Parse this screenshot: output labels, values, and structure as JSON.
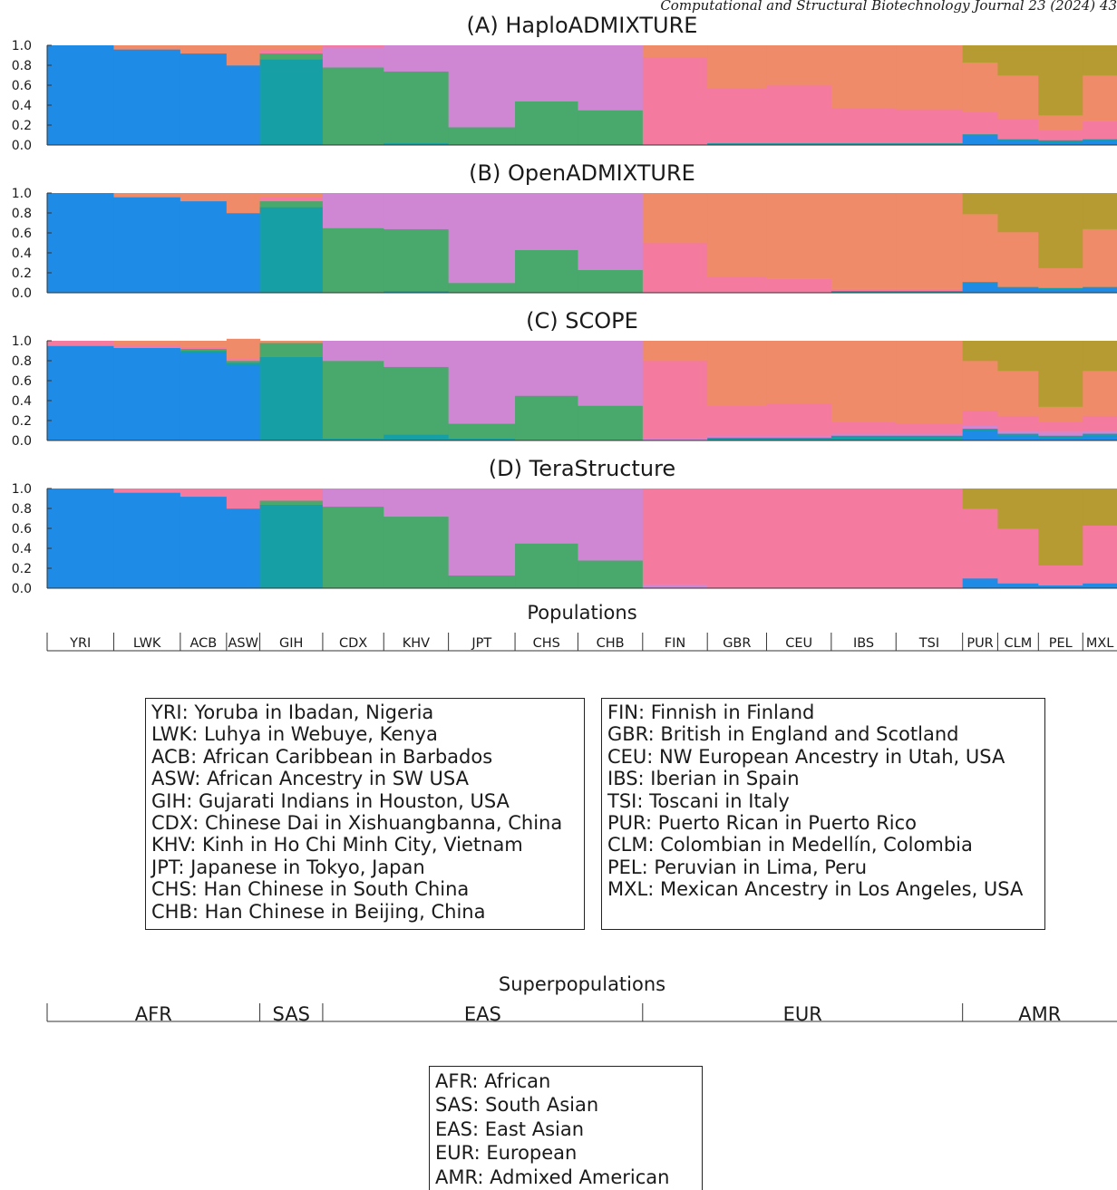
{
  "journal_header": "Computational and Structural Biotechnology Journal 23 (2024) 43",
  "components": {
    "blue": "#1e8be6",
    "teal": "#16a0a6",
    "green": "#49a86b",
    "purple": "#cf86d3",
    "pink": "#f47aa0",
    "orange": "#ef8b68",
    "olive": "#b59b32"
  },
  "y_tick_labels": [
    "1.0",
    "0.8",
    "0.6",
    "0.4",
    "0.2",
    "0.0"
  ],
  "chart_data": [
    {
      "type": "bar",
      "title": "(A) HaploADMIXTURE",
      "ylim": [
        0,
        1
      ],
      "categories": [
        "YRI",
        "LWK",
        "ACB",
        "ASW",
        "GIH",
        "CDX",
        "KHV",
        "JPT",
        "CHS",
        "CHB",
        "FIN",
        "GBR",
        "CEU",
        "IBS",
        "TSI",
        "PUR",
        "CLM",
        "PEL",
        "MXL"
      ],
      "series": [
        {
          "color": "blue",
          "values": [
            1.0,
            0.96,
            0.92,
            0.8,
            0.0,
            0.0,
            0.0,
            0.0,
            0.0,
            0.0,
            0.0,
            0.0,
            0.0,
            0.0,
            0.0,
            0.1,
            0.05,
            0.03,
            0.05
          ]
        },
        {
          "color": "teal",
          "values": [
            0.0,
            0.0,
            0.0,
            0.0,
            0.86,
            0.0,
            0.02,
            0.0,
            0.0,
            0.0,
            0.0,
            0.02,
            0.02,
            0.02,
            0.02,
            0.01,
            0.01,
            0.02,
            0.01
          ]
        },
        {
          "color": "green",
          "values": [
            0.0,
            0.0,
            0.0,
            0.0,
            0.06,
            0.78,
            0.72,
            0.18,
            0.44,
            0.35,
            0.0,
            0.0,
            0.0,
            0.0,
            0.0,
            0.0,
            0.0,
            0.0,
            0.0
          ]
        },
        {
          "color": "purple",
          "values": [
            0.0,
            0.0,
            0.0,
            0.0,
            0.0,
            0.2,
            0.26,
            0.82,
            0.56,
            0.65,
            0.0,
            0.0,
            0.0,
            0.0,
            0.0,
            0.0,
            0.0,
            0.0,
            0.0
          ]
        },
        {
          "color": "pink",
          "values": [
            0.0,
            0.0,
            0.0,
            0.0,
            0.04,
            0.02,
            0.0,
            0.0,
            0.0,
            0.0,
            0.88,
            0.55,
            0.58,
            0.35,
            0.34,
            0.22,
            0.2,
            0.1,
            0.18
          ]
        },
        {
          "color": "orange",
          "values": [
            0.0,
            0.04,
            0.08,
            0.2,
            0.04,
            0.0,
            0.0,
            0.0,
            0.0,
            0.0,
            0.12,
            0.43,
            0.4,
            0.63,
            0.64,
            0.5,
            0.44,
            0.15,
            0.46
          ]
        },
        {
          "color": "olive",
          "values": [
            0.0,
            0.0,
            0.0,
            0.0,
            0.0,
            0.0,
            0.0,
            0.0,
            0.0,
            0.0,
            0.0,
            0.0,
            0.0,
            0.0,
            0.0,
            0.17,
            0.3,
            0.7,
            0.3
          ]
        }
      ]
    },
    {
      "type": "bar",
      "title": "(B) OpenADMIXTURE",
      "ylim": [
        0,
        1
      ],
      "categories": [
        "YRI",
        "LWK",
        "ACB",
        "ASW",
        "GIH",
        "CDX",
        "KHV",
        "JPT",
        "CHS",
        "CHB",
        "FIN",
        "GBR",
        "CEU",
        "IBS",
        "TSI",
        "PUR",
        "CLM",
        "PEL",
        "MXL"
      ],
      "series": [
        {
          "color": "blue",
          "values": [
            1.0,
            0.96,
            0.92,
            0.8,
            0.0,
            0.0,
            0.0,
            0.0,
            0.0,
            0.0,
            0.0,
            0.0,
            0.0,
            0.0,
            0.0,
            0.1,
            0.05,
            0.03,
            0.05
          ]
        },
        {
          "color": "teal",
          "values": [
            0.0,
            0.0,
            0.0,
            0.0,
            0.86,
            0.0,
            0.02,
            0.0,
            0.0,
            0.0,
            0.0,
            0.0,
            0.0,
            0.02,
            0.02,
            0.01,
            0.01,
            0.02,
            0.01
          ]
        },
        {
          "color": "green",
          "values": [
            0.0,
            0.0,
            0.0,
            0.0,
            0.06,
            0.65,
            0.62,
            0.1,
            0.43,
            0.23,
            0.0,
            0.0,
            0.0,
            0.0,
            0.0,
            0.0,
            0.0,
            0.0,
            0.0
          ]
        },
        {
          "color": "purple",
          "values": [
            0.0,
            0.0,
            0.0,
            0.0,
            0.0,
            0.35,
            0.36,
            0.9,
            0.57,
            0.77,
            0.0,
            0.0,
            0.0,
            0.0,
            0.0,
            0.0,
            0.0,
            0.0,
            0.0
          ]
        },
        {
          "color": "pink",
          "values": [
            0.0,
            0.0,
            0.0,
            0.0,
            0.04,
            0.0,
            0.0,
            0.0,
            0.0,
            0.0,
            0.5,
            0.16,
            0.14,
            0.02,
            0.02,
            0.0,
            0.0,
            0.0,
            0.0
          ]
        },
        {
          "color": "orange",
          "values": [
            0.0,
            0.04,
            0.08,
            0.2,
            0.04,
            0.0,
            0.0,
            0.0,
            0.0,
            0.0,
            0.5,
            0.84,
            0.86,
            0.96,
            0.96,
            0.68,
            0.55,
            0.2,
            0.58
          ]
        },
        {
          "color": "olive",
          "values": [
            0.0,
            0.0,
            0.0,
            0.0,
            0.0,
            0.0,
            0.0,
            0.0,
            0.0,
            0.0,
            0.0,
            0.0,
            0.0,
            0.0,
            0.0,
            0.21,
            0.39,
            0.75,
            0.36
          ]
        }
      ]
    },
    {
      "type": "bar",
      "title": "(C) SCOPE",
      "ylim": [
        0,
        1
      ],
      "categories": [
        "YRI",
        "LWK",
        "ACB",
        "ASW",
        "GIH",
        "CDX",
        "KHV",
        "JPT",
        "CHS",
        "CHB",
        "FIN",
        "GBR",
        "CEU",
        "IBS",
        "TSI",
        "PUR",
        "CLM",
        "PEL",
        "MXL"
      ],
      "series": [
        {
          "color": "blue",
          "values": [
            0.95,
            0.93,
            0.88,
            0.76,
            0.0,
            0.0,
            0.0,
            0.0,
            0.0,
            0.0,
            0.0,
            0.0,
            0.0,
            0.0,
            0.0,
            0.1,
            0.05,
            0.03,
            0.05
          ]
        },
        {
          "color": "teal",
          "values": [
            0.0,
            0.0,
            0.02,
            0.02,
            0.84,
            0.02,
            0.06,
            0.02,
            0.0,
            0.0,
            0.0,
            0.03,
            0.03,
            0.05,
            0.05,
            0.02,
            0.02,
            0.02,
            0.02
          ]
        },
        {
          "color": "green",
          "values": [
            0.0,
            0.0,
            0.02,
            0.02,
            0.14,
            0.78,
            0.68,
            0.15,
            0.45,
            0.35,
            0.0,
            0.0,
            0.0,
            0.0,
            0.0,
            0.0,
            0.0,
            0.0,
            0.0
          ]
        },
        {
          "color": "purple",
          "values": [
            0.0,
            0.0,
            0.0,
            0.0,
            0.0,
            0.2,
            0.26,
            0.83,
            0.55,
            0.65,
            0.02,
            0.02,
            0.02,
            0.02,
            0.02,
            0.03,
            0.03,
            0.04,
            0.03
          ]
        },
        {
          "color": "pink",
          "values": [
            0.05,
            0.03,
            0.02,
            0.02,
            0.0,
            0.0,
            0.0,
            0.0,
            0.0,
            0.0,
            0.78,
            0.3,
            0.32,
            0.12,
            0.1,
            0.15,
            0.15,
            0.1,
            0.15
          ]
        },
        {
          "color": "orange",
          "values": [
            0.0,
            0.04,
            0.06,
            0.2,
            0.02,
            0.0,
            0.0,
            0.0,
            0.0,
            0.0,
            0.2,
            0.65,
            0.63,
            0.81,
            0.83,
            0.5,
            0.45,
            0.15,
            0.45
          ]
        },
        {
          "color": "olive",
          "values": [
            0.0,
            0.0,
            0.0,
            0.0,
            0.0,
            0.0,
            0.0,
            0.0,
            0.0,
            0.0,
            0.0,
            0.0,
            0.0,
            0.0,
            0.0,
            0.2,
            0.3,
            0.66,
            0.3
          ]
        }
      ]
    },
    {
      "type": "bar",
      "title": "(D) TeraStructure",
      "ylim": [
        0,
        1
      ],
      "categories": [
        "YRI",
        "LWK",
        "ACB",
        "ASW",
        "GIH",
        "CDX",
        "KHV",
        "JPT",
        "CHS",
        "CHB",
        "FIN",
        "GBR",
        "CEU",
        "IBS",
        "TSI",
        "PUR",
        "CLM",
        "PEL",
        "MXL"
      ],
      "series": [
        {
          "color": "blue",
          "values": [
            1.0,
            0.96,
            0.92,
            0.8,
            0.0,
            0.0,
            0.0,
            0.0,
            0.0,
            0.0,
            0.0,
            0.0,
            0.0,
            0.0,
            0.0,
            0.1,
            0.05,
            0.03,
            0.05
          ]
        },
        {
          "color": "teal",
          "values": [
            0.0,
            0.0,
            0.0,
            0.0,
            0.84,
            0.0,
            0.0,
            0.0,
            0.0,
            0.0,
            0.0,
            0.0,
            0.0,
            0.0,
            0.0,
            0.0,
            0.0,
            0.0,
            0.0
          ]
        },
        {
          "color": "green",
          "values": [
            0.0,
            0.0,
            0.0,
            0.0,
            0.04,
            0.82,
            0.72,
            0.13,
            0.45,
            0.28,
            0.0,
            0.0,
            0.0,
            0.0,
            0.0,
            0.0,
            0.0,
            0.0,
            0.0
          ]
        },
        {
          "color": "purple",
          "values": [
            0.0,
            0.0,
            0.0,
            0.0,
            0.0,
            0.18,
            0.28,
            0.87,
            0.55,
            0.72,
            0.04,
            0.0,
            0.0,
            0.0,
            0.0,
            0.0,
            0.0,
            0.0,
            0.0
          ]
        },
        {
          "color": "pink",
          "values": [
            0.0,
            0.04,
            0.08,
            0.2,
            0.12,
            0.0,
            0.0,
            0.0,
            0.0,
            0.0,
            0.96,
            1.0,
            1.0,
            1.0,
            1.0,
            0.7,
            0.55,
            0.2,
            0.58
          ]
        },
        {
          "color": "orange",
          "values": [
            0.0,
            0.0,
            0.0,
            0.0,
            0.0,
            0.0,
            0.0,
            0.0,
            0.0,
            0.0,
            0.0,
            0.0,
            0.0,
            0.0,
            0.0,
            0.0,
            0.0,
            0.0,
            0.0
          ]
        },
        {
          "color": "olive",
          "values": [
            0.0,
            0.0,
            0.0,
            0.0,
            0.0,
            0.0,
            0.0,
            0.0,
            0.0,
            0.0,
            0.0,
            0.0,
            0.0,
            0.0,
            0.0,
            0.2,
            0.4,
            0.77,
            0.37
          ]
        }
      ]
    }
  ],
  "populations": {
    "title": "Populations",
    "labels": [
      "YRI",
      "LWK",
      "ACB",
      "ASW",
      "GIH",
      "CDX",
      "KHV",
      "JPT",
      "CHS",
      "CHB",
      "FIN",
      "GBR",
      "CEU",
      "IBS",
      "TSI",
      "PUR",
      "CLM",
      "PEL",
      "MXL"
    ]
  },
  "population_legend_left": [
    "YRI: Yoruba in Ibadan, Nigeria",
    "LWK: Luhya in Webuye, Kenya",
    "ACB: African Caribbean in Barbados",
    "ASW: African Ancestry in SW USA",
    "GIH: Gujarati Indians in Houston, USA",
    "CDX: Chinese Dai in Xishuangbanna, China",
    "KHV: Kinh in Ho Chi Minh City, Vietnam",
    "JPT: Japanese in Tokyo, Japan",
    "CHS: Han Chinese in South China",
    "CHB: Han Chinese in Beijing, China"
  ],
  "population_legend_right": [
    "FIN: Finnish in Finland",
    "GBR: British in England and Scotland",
    "CEU: NW European Ancestry in Utah, USA",
    "IBS: Iberian in Spain",
    "TSI: Toscani in Italy",
    "PUR: Puerto Rican in Puerto Rico",
    "CLM: Colombian in Medellín, Colombia",
    "PEL: Peruvian in Lima, Peru",
    "MXL: Mexican Ancestry in Los Angeles, USA"
  ],
  "superpopulations": {
    "title": "Superpopulations",
    "labels": [
      "AFR",
      "SAS",
      "EAS",
      "EUR",
      "AMR"
    ]
  },
  "superpopulation_legend": [
    "AFR: African",
    "SAS: South Asian",
    "EAS: East Asian",
    "EUR: European",
    "AMR: Admixed American"
  ]
}
